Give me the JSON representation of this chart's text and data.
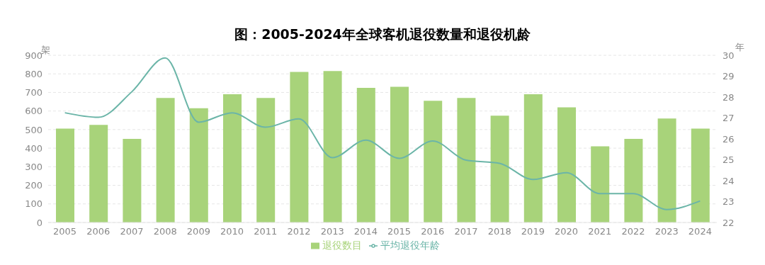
{
  "chart_data": {
    "type": "bar",
    "title": "图：2005-2024年全球客机退役数量和退役机龄",
    "ylabel": "架",
    "y2label": "年",
    "categories": [
      "2005",
      "2006",
      "2007",
      "2008",
      "2009",
      "2010",
      "2011",
      "2012",
      "2013",
      "2014",
      "2015",
      "2016",
      "2017",
      "2018",
      "2019",
      "2020",
      "2021",
      "2022",
      "2023",
      "2024"
    ],
    "series": [
      {
        "name": "退役数目",
        "color": "#a8d37a",
        "values": [
          505,
          525,
          450,
          670,
          615,
          690,
          670,
          810,
          815,
          725,
          730,
          655,
          670,
          575,
          690,
          620,
          410,
          450,
          560,
          505
        ]
      },
      {
        "name": "平均退役年龄",
        "type": "line",
        "axis": "y2",
        "color": "#6bb5a8",
        "values": [
          27.25,
          27.03,
          28.25,
          29.87,
          26.8,
          27.25,
          26.56,
          26.96,
          25.1,
          25.94,
          25.07,
          25.9,
          24.98,
          24.83,
          24.06,
          24.38,
          23.38,
          23.38,
          22.62,
          23.03
        ]
      }
    ],
    "ylim": [
      0,
      900
    ],
    "yticks": [
      0,
      100,
      200,
      300,
      400,
      500,
      600,
      700,
      800,
      900
    ],
    "y2lim": [
      22,
      30
    ],
    "y2ticks": [
      22,
      23,
      24,
      25,
      26,
      27,
      28,
      29,
      30
    ],
    "grid": "y",
    "legend": "bottom",
    "marker": "none",
    "line_style": "solid"
  }
}
